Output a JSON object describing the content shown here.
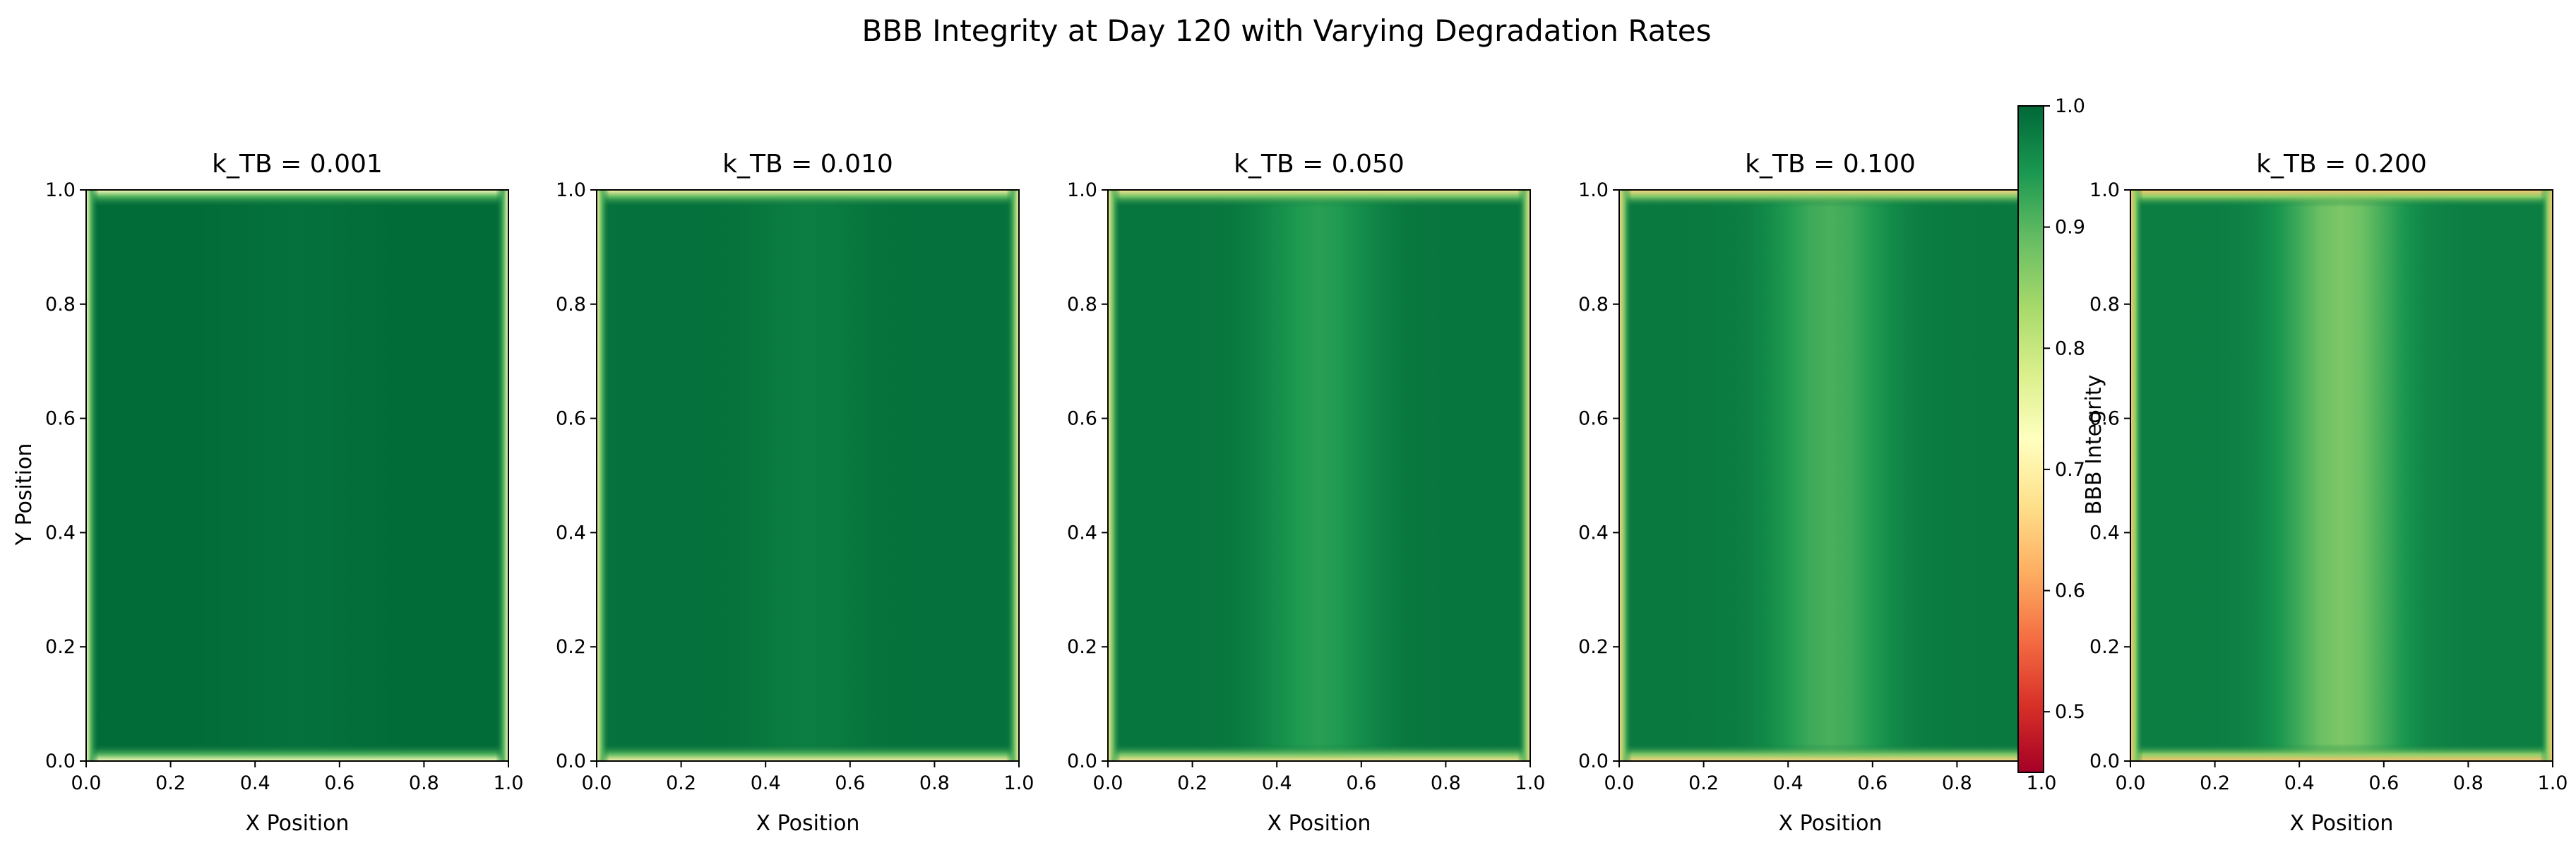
{
  "chart_data": {
    "type": "heatmap",
    "title": "BBB Integrity at Day 120 with Varying Degradation Rates",
    "xlabel": "X Position",
    "ylabel": "Y Position",
    "xlim": [
      0.0,
      1.0
    ],
    "ylim": [
      0.0,
      1.0
    ],
    "x_ticks": [
      "0.0",
      "0.2",
      "0.4",
      "0.6",
      "0.8",
      "1.0"
    ],
    "y_ticks": [
      "0.0",
      "0.2",
      "0.4",
      "0.6",
      "0.8",
      "1.0"
    ],
    "colorbar": {
      "label": "BBB Integrity",
      "range": [
        0.45,
        1.0
      ],
      "ticks": [
        "0.5",
        "0.6",
        "0.7",
        "0.8",
        "0.9",
        "1.0"
      ],
      "colormap": "RdYlGn"
    },
    "panels": [
      {
        "title": "k_TB = 0.001",
        "k_TB": 0.001,
        "interior_value": 0.995,
        "center_value": 0.99,
        "boundary_value": 0.72
      },
      {
        "title": "k_TB = 0.010",
        "k_TB": 0.01,
        "interior_value": 0.99,
        "center_value": 0.975,
        "boundary_value": 0.7
      },
      {
        "title": "k_TB = 0.050",
        "k_TB": 0.05,
        "interior_value": 0.985,
        "center_value": 0.935,
        "boundary_value": 0.68
      },
      {
        "title": "k_TB = 0.100",
        "k_TB": 0.1,
        "interior_value": 0.98,
        "center_value": 0.91,
        "boundary_value": 0.66
      },
      {
        "title": "k_TB = 0.200",
        "k_TB": 0.2,
        "interior_value": 0.975,
        "center_value": 0.87,
        "boundary_value": 0.64
      }
    ]
  }
}
